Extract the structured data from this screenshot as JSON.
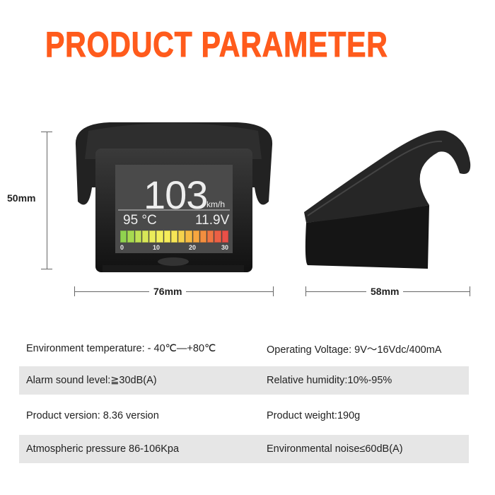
{
  "title": "PRODUCT PARAMETER",
  "dimensions": {
    "height": "50mm",
    "width": "76mm",
    "depth": "58mm"
  },
  "display": {
    "speed": "103",
    "speed_unit": "km/h",
    "temperature": "95 °C",
    "voltage": "11.9V",
    "gauge_ticks": [
      "0",
      "10",
      "20",
      "30"
    ]
  },
  "specs": [
    {
      "left": "Environment temperature: - 40℃—+80℃",
      "right": "Operating Voltage: 9V〜16Vdc/400mA"
    },
    {
      "left": "Alarm sound level:≧30dB(A)",
      "right": "Relative humidity:10%-95%"
    },
    {
      "left": "Product version: 8.36 version",
      "right": "Product weight:190g"
    },
    {
      "left": "Atmospheric pressure 86-106Kpa",
      "right": "Environmental noise≤60dB(A)"
    }
  ],
  "colors": {
    "title": "#ff5b1c",
    "row_stripe": "#e6e6e6"
  }
}
